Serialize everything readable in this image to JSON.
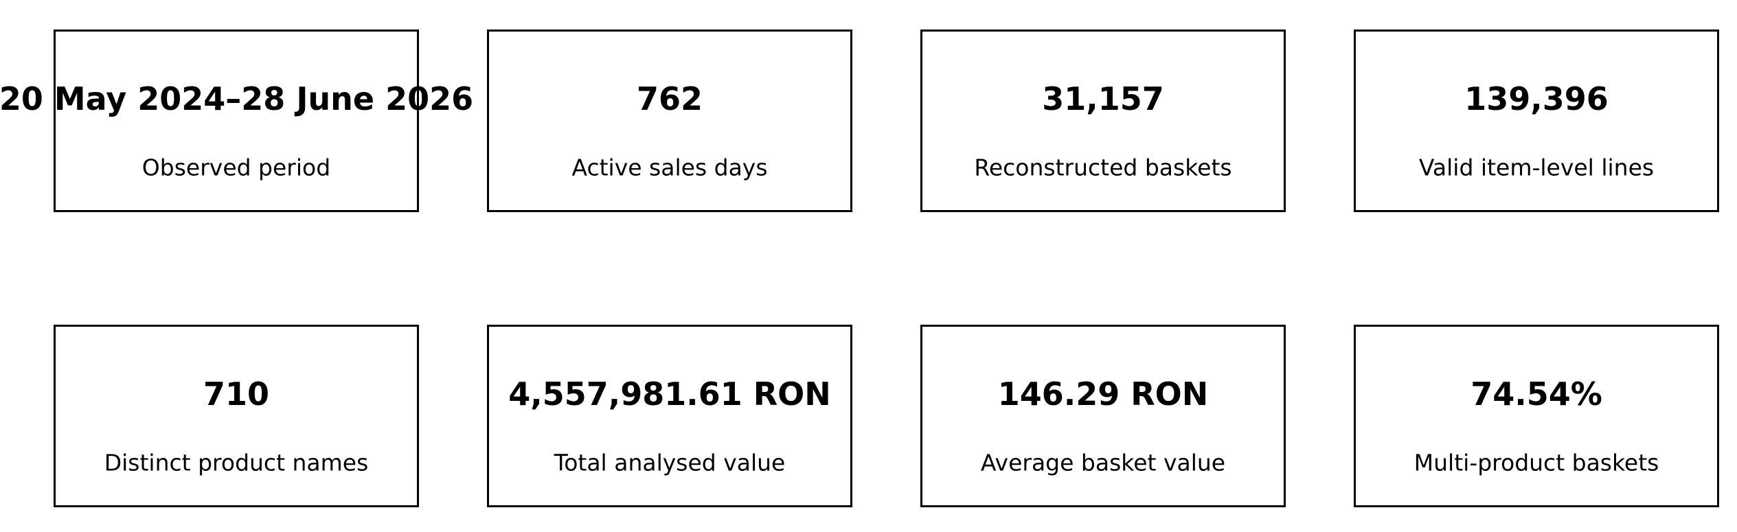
{
  "cards": [
    {
      "value": "20 May 2024–28 June 2026",
      "label": "Observed period"
    },
    {
      "value": "762",
      "label": "Active sales days"
    },
    {
      "value": "31,157",
      "label": "Reconstructed baskets"
    },
    {
      "value": "139,396",
      "label": "Valid item-level lines"
    },
    {
      "value": "710",
      "label": "Distinct product names"
    },
    {
      "value": "4,557,981.61 RON",
      "label": "Total analysed value"
    },
    {
      "value": "146.29 RON",
      "label": "Average basket value"
    },
    {
      "value": "74.54%",
      "label": "Multi-product baskets"
    }
  ]
}
